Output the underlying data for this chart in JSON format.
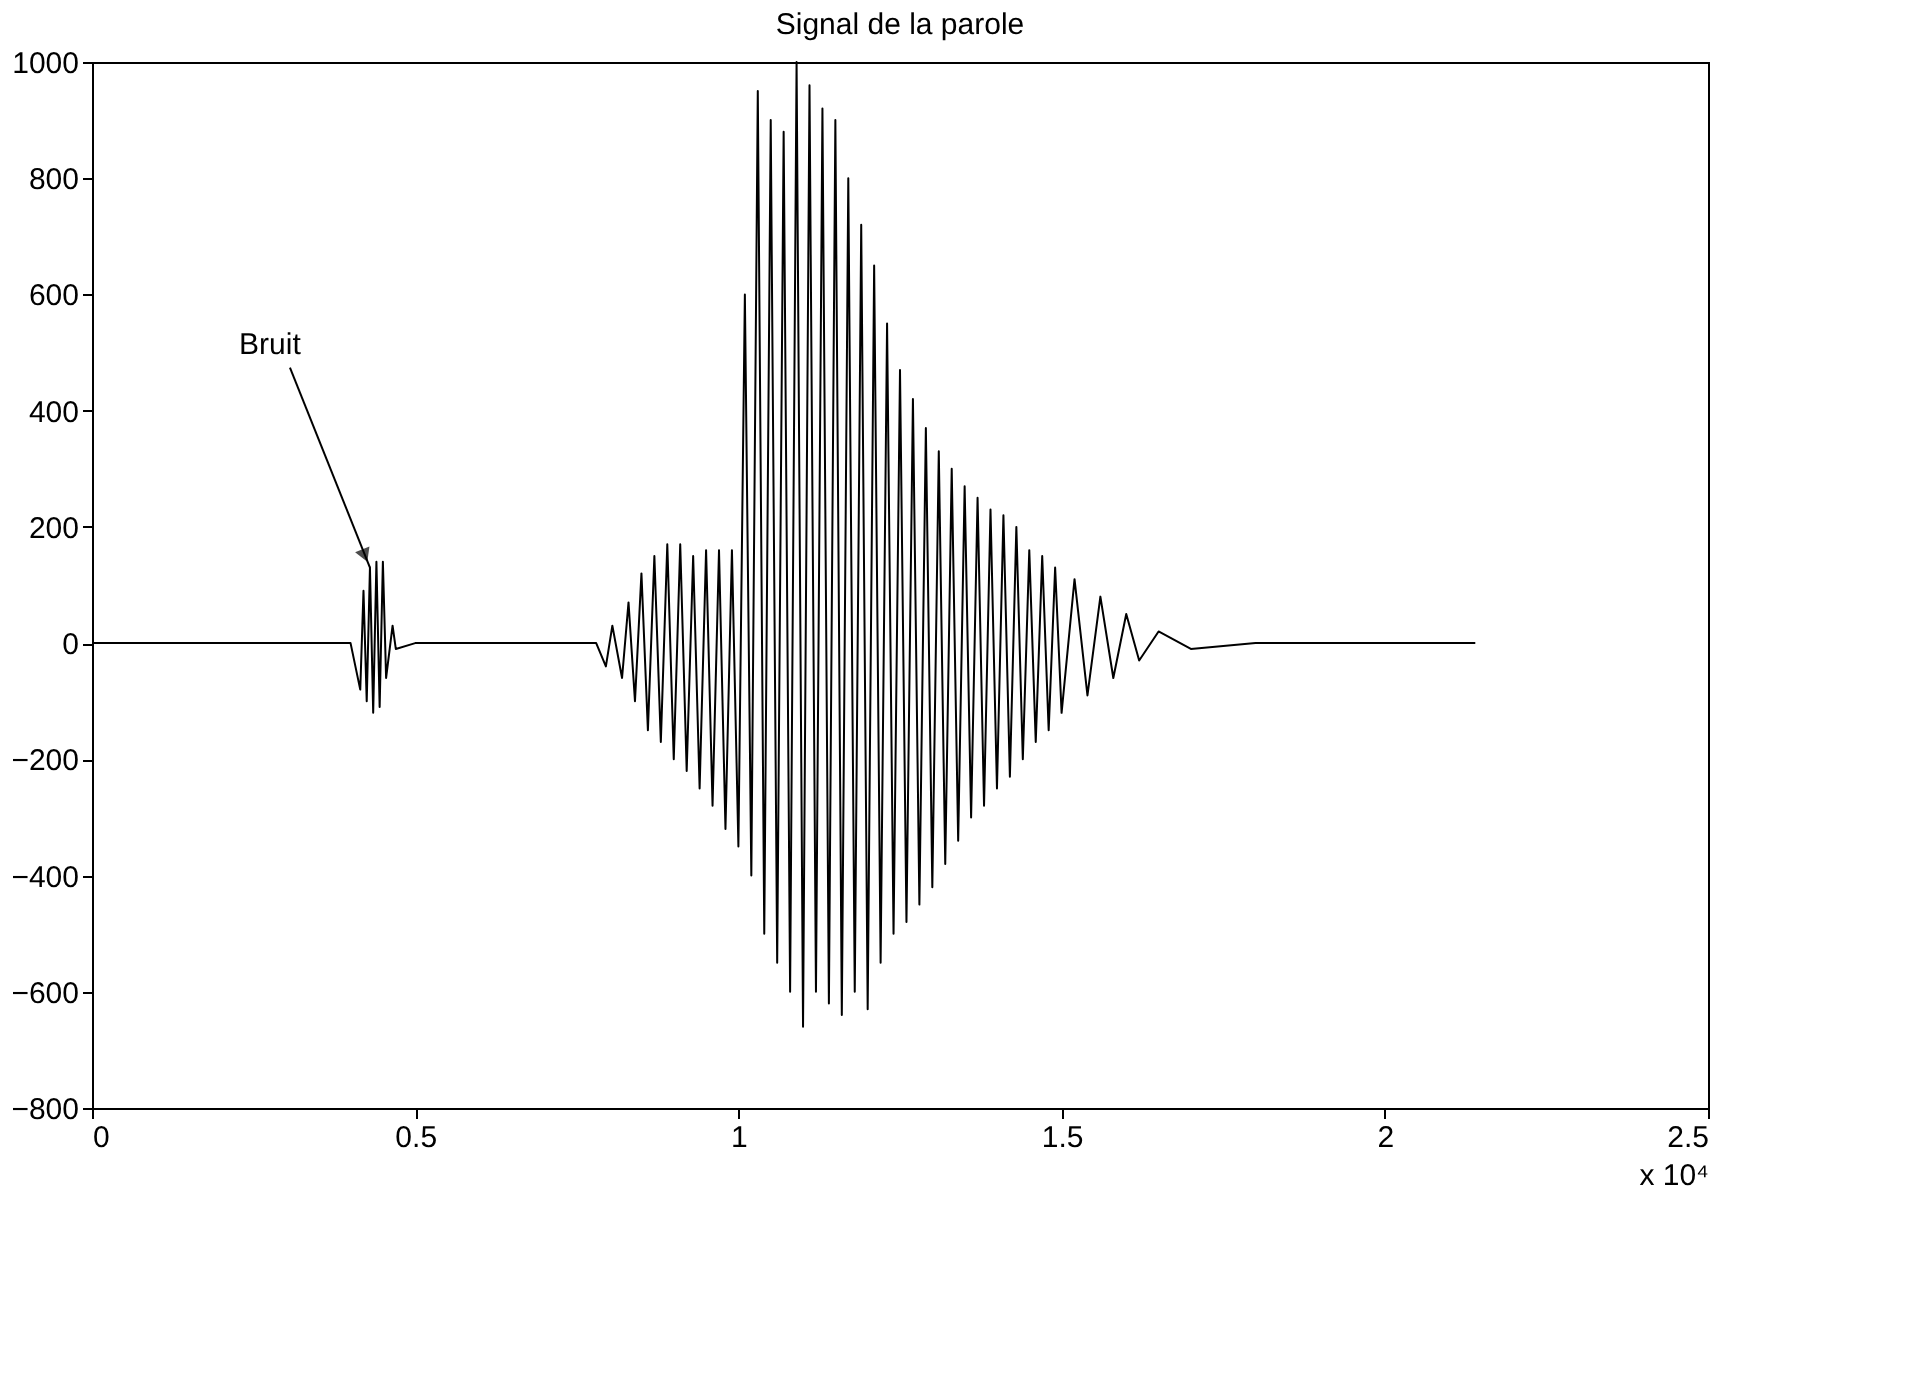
{
  "chart_data": {
    "type": "line",
    "title": "Signal de la parole",
    "xlabel": "x 10⁴",
    "x": [
      0,
      0.4,
      0.415,
      0.42,
      0.425,
      0.43,
      0.435,
      0.44,
      0.445,
      0.45,
      0.455,
      0.465,
      0.47,
      0.5,
      0.63,
      0.78,
      0.795,
      0.805,
      0.82,
      0.83,
      0.84,
      0.85,
      0.86,
      0.87,
      0.88,
      0.89,
      0.9,
      0.91,
      0.92,
      0.93,
      0.94,
      0.95,
      0.96,
      0.97,
      0.98,
      0.99,
      1.0,
      1.01,
      1.02,
      1.03,
      1.04,
      1.05,
      1.06,
      1.07,
      1.08,
      1.09,
      1.1,
      1.11,
      1.12,
      1.13,
      1.14,
      1.15,
      1.16,
      1.17,
      1.18,
      1.19,
      1.2,
      1.21,
      1.22,
      1.23,
      1.24,
      1.25,
      1.26,
      1.27,
      1.28,
      1.29,
      1.3,
      1.31,
      1.32,
      1.33,
      1.34,
      1.35,
      1.36,
      1.37,
      1.38,
      1.39,
      1.4,
      1.41,
      1.42,
      1.43,
      1.44,
      1.45,
      1.46,
      1.47,
      1.48,
      1.49,
      1.5,
      1.52,
      1.54,
      1.56,
      1.58,
      1.6,
      1.62,
      1.65,
      1.7,
      1.8,
      2.14
    ],
    "series": [
      {
        "color": "#000000",
        "values": [
          0,
          0,
          -80,
          90,
          -100,
          130,
          -120,
          140,
          -110,
          140,
          -60,
          30,
          -10,
          0,
          0,
          0,
          -40,
          30,
          -60,
          70,
          -100,
          120,
          -150,
          150,
          -170,
          170,
          -200,
          170,
          -220,
          150,
          -250,
          160,
          -280,
          160,
          -320,
          160,
          -350,
          600,
          -400,
          950,
          -500,
          900,
          -550,
          880,
          -600,
          1000,
          -660,
          960,
          -600,
          920,
          -620,
          900,
          -640,
          800,
          -600,
          720,
          -630,
          650,
          -550,
          550,
          -500,
          470,
          -480,
          420,
          -450,
          370,
          -420,
          330,
          -380,
          300,
          -340,
          270,
          -300,
          250,
          -280,
          230,
          -250,
          220,
          -230,
          200,
          -200,
          160,
          -170,
          150,
          -150,
          130,
          -120,
          110,
          -90,
          80,
          -60,
          50,
          -30,
          20,
          -10,
          0,
          0
        ]
      }
    ],
    "xlim": [
      0,
      2.5
    ],
    "xticks": [
      0,
      0.5,
      1,
      1.5,
      2,
      2.5
    ],
    "ylim": [
      -800,
      1000
    ],
    "yticks": [
      -800,
      -600,
      -400,
      -200,
      0,
      200,
      400,
      600,
      800,
      1000
    ],
    "annotations": [
      {
        "text": "Bruit",
        "x": 0.43,
        "y": 130
      }
    ],
    "grid": false,
    "line_style": "solid",
    "marker": "none"
  }
}
